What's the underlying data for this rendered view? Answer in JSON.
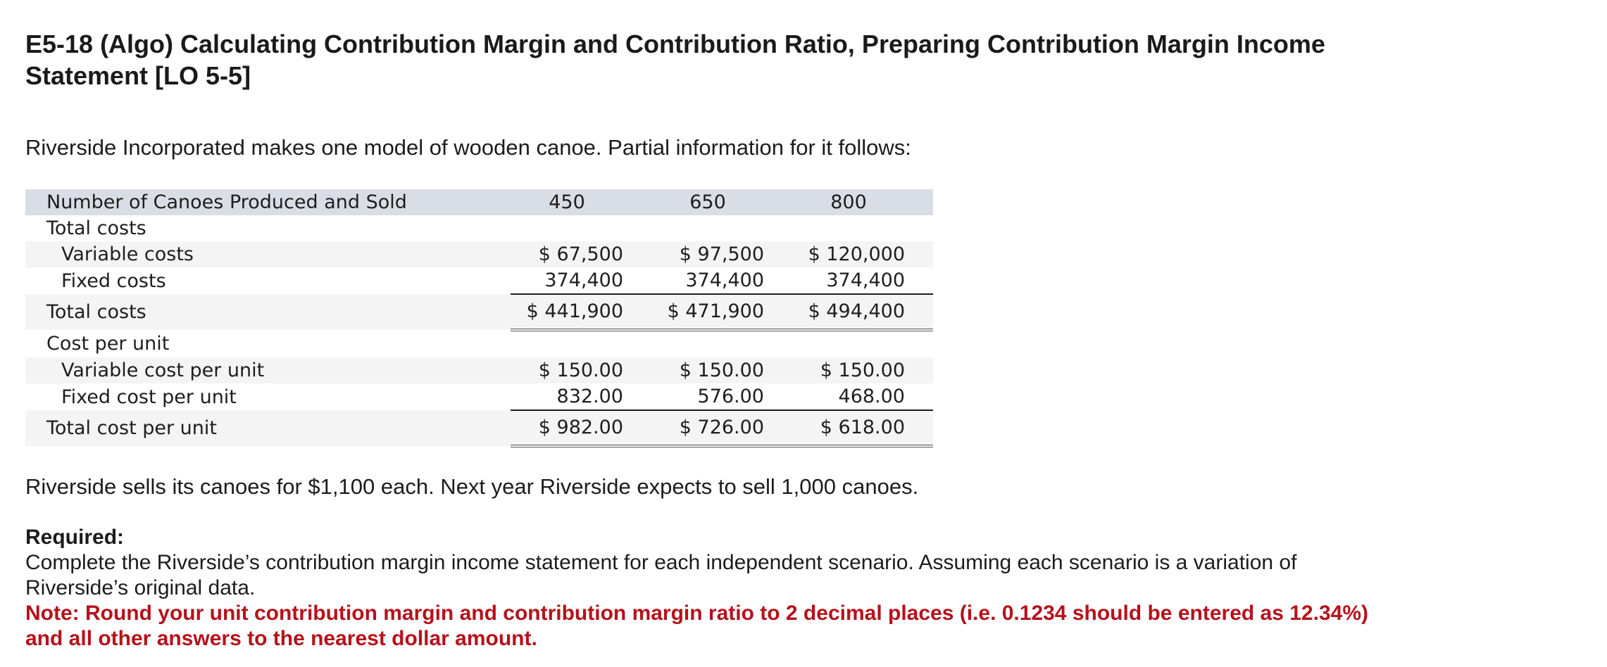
{
  "title": "E5-18 (Algo) Calculating Contribution Margin and Contribution Ratio, Preparing Contribution Margin Income Statement [LO 5-5]",
  "intro": "Riverside Incorporated makes one model of wooden canoe. Partial information for it follows:",
  "table": {
    "header": {
      "label": "Number of Canoes Produced and Sold",
      "values": [
        "450",
        "650",
        "800"
      ]
    },
    "total_costs_heading": "Total costs",
    "variable_costs": {
      "label": "Variable costs",
      "values": [
        "$ 67,500",
        "$ 97,500",
        "$ 120,000"
      ]
    },
    "fixed_costs": {
      "label": "Fixed costs",
      "values": [
        "374,400",
        "374,400",
        "374,400"
      ]
    },
    "total_costs": {
      "label": "Total costs",
      "values": [
        "$ 441,900",
        "$ 471,900",
        "$ 494,400"
      ]
    },
    "cost_per_unit_heading": "Cost per unit",
    "variable_cost_per_unit": {
      "label": "Variable cost per unit",
      "values": [
        "$ 150.00",
        "$ 150.00",
        "$ 150.00"
      ]
    },
    "fixed_cost_per_unit": {
      "label": "Fixed cost per unit",
      "values": [
        "832.00",
        "576.00",
        "468.00"
      ]
    },
    "total_cost_per_unit": {
      "label": "Total cost per unit",
      "values": [
        "$ 982.00",
        "$ 726.00",
        "$ 618.00"
      ]
    }
  },
  "after_table": "Riverside sells its canoes for $1,100 each. Next year Riverside expects to sell 1,000 canoes.",
  "required": {
    "label": "Required:",
    "text": "Complete the Riverside’s contribution margin income statement for each independent scenario. Assuming each scenario is a variation of Riverside’s original data.",
    "note": "Note: Round your unit contribution margin and contribution margin ratio to 2 decimal places (i.e. 0.1234 should be entered as 12.34%) and all other answers to the nearest dollar amount.",
    "note_color": "#b5121b"
  }
}
